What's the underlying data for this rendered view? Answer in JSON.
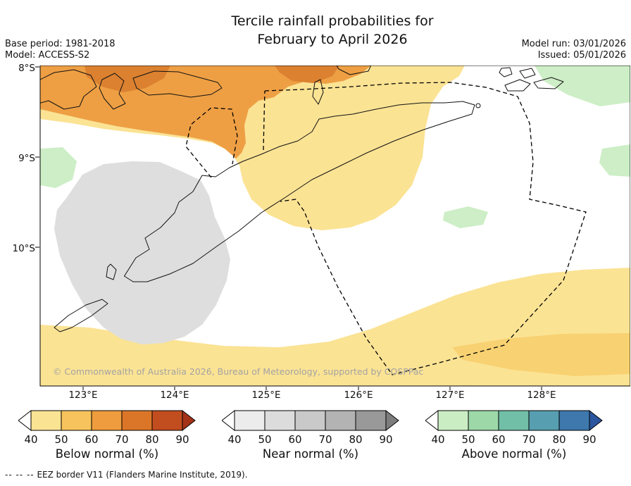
{
  "header": {
    "title_line1": "Tercile rainfall probabilities for",
    "title_line2": "February to April 2026",
    "base_period": "Base period: 1981-2018",
    "model": "Model: ACCESS-S2",
    "model_run": "Model run: 03/01/2026",
    "issued": "Issued: 05/01/2026"
  },
  "map": {
    "lat_labels": [
      "8°S",
      "9°S",
      "10°S"
    ],
    "lon_labels": [
      "123°E",
      "124°E",
      "125°E",
      "126°E",
      "127°E",
      "128°E"
    ],
    "copyright": "© Commonwealth of Australia 2026, Bureau of Meteorology, supported by COSPPac",
    "colors": {
      "yellow": "#FBE394",
      "yellow_deep": "#F8D272",
      "orange": "#EE9F44",
      "orange_dark": "#DB8130",
      "gray": "#DEDEDE",
      "green": "#CDEEC6"
    }
  },
  "chart_data": {
    "type": "heatmap",
    "title": "Tercile rainfall probabilities for February to April 2026",
    "x_axis_ticks": [
      "123°E",
      "124°E",
      "125°E",
      "126°E",
      "127°E",
      "128°E"
    ],
    "y_axis_ticks": [
      "8°S",
      "9°S",
      "10°S"
    ],
    "legend_position": "bottom",
    "categories_legend": [
      "Below normal (%)",
      "Near normal (%)",
      "Above normal (%)"
    ],
    "probability_ticks": [
      40,
      50,
      60,
      70,
      80,
      90
    ]
  },
  "legends": [
    {
      "label": "Below normal (%)",
      "ticks": [
        "40",
        "50",
        "60",
        "70",
        "80",
        "90"
      ],
      "colors": [
        "#FFFFFF",
        "#FBE394",
        "#F7C35C",
        "#EE9C3D",
        "#DB7628",
        "#C24D1F",
        "#A43317"
      ]
    },
    {
      "label": "Near normal (%)",
      "ticks": [
        "40",
        "50",
        "60",
        "70",
        "80",
        "90"
      ],
      "colors": [
        "#FFFFFF",
        "#ECECEC",
        "#DCDCDC",
        "#C9C9C9",
        "#B3B3B3",
        "#999999",
        "#7D7D7D"
      ]
    },
    {
      "label": "Above normal (%)",
      "ticks": [
        "40",
        "50",
        "60",
        "70",
        "80",
        "90"
      ],
      "colors": [
        "#FFFFFF",
        "#CBEDC3",
        "#9DD8A9",
        "#72BFA8",
        "#579FB0",
        "#3E78AD",
        "#2B559E"
      ]
    }
  ],
  "footnote": {
    "symbol": "-- -- --",
    "text": "EEZ border V11 (Flanders Marine Institute, 2019)."
  }
}
